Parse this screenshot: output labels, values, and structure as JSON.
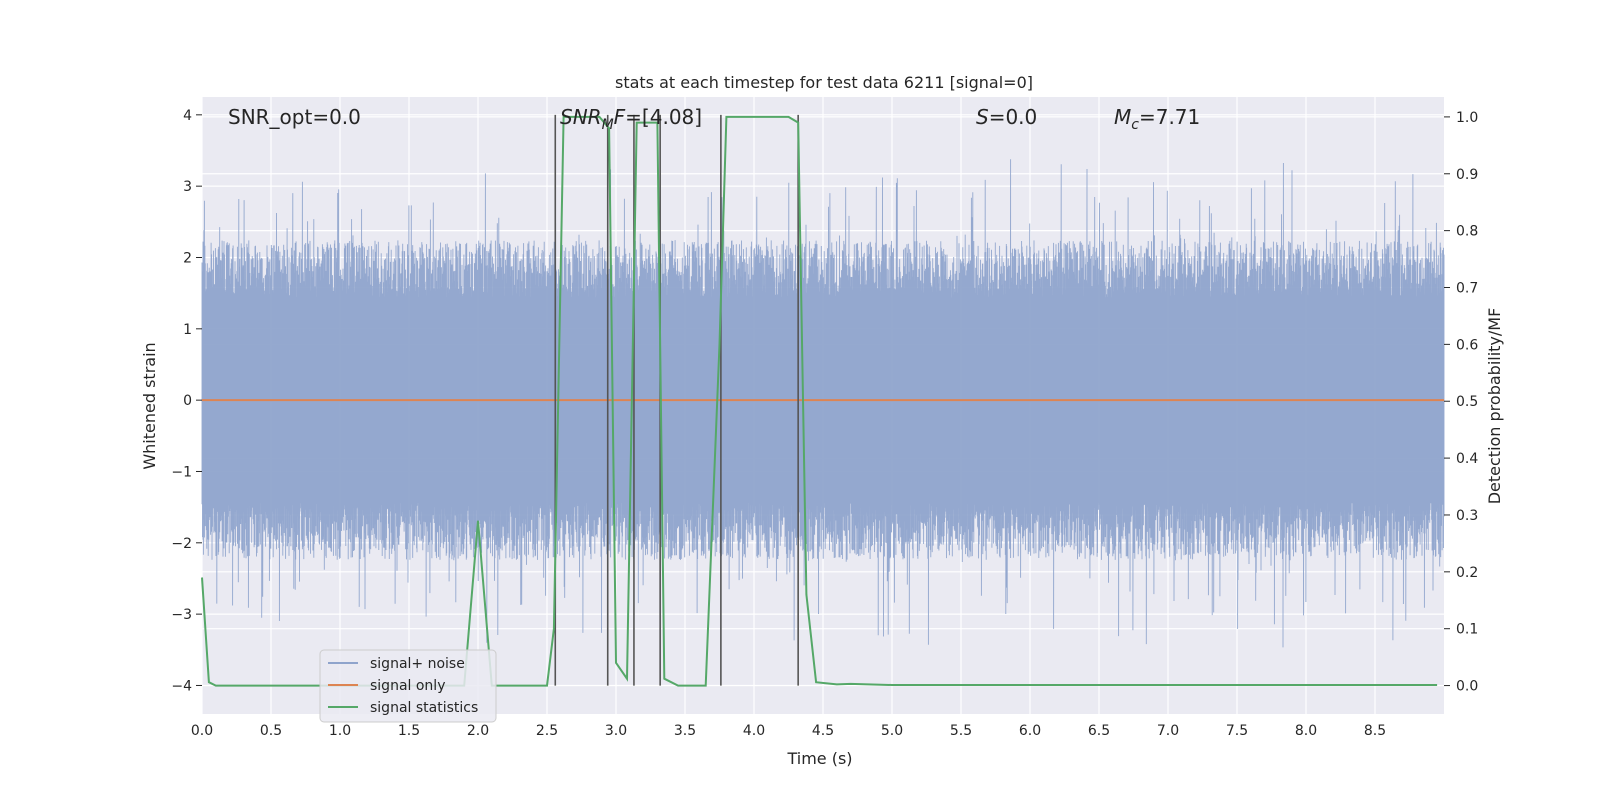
{
  "chart_data": {
    "type": "line",
    "title": "stats at each timestep for test data 6211 [signal=0]",
    "xlabel": "Time (s)",
    "ylabel": "Whitened strain",
    "y2label": "Detection probability/MF",
    "xlim": [
      0,
      9.0
    ],
    "ylim": [
      -4.4,
      4.25
    ],
    "y2lim": [
      -0.05,
      1.035
    ],
    "x_ticks": [
      "0.0",
      "0.5",
      "1.0",
      "1.5",
      "2.0",
      "2.5",
      "3.0",
      "3.5",
      "4.0",
      "4.5",
      "5.0",
      "5.5",
      "6.0",
      "6.5",
      "7.0",
      "7.5",
      "8.0",
      "8.5"
    ],
    "y_ticks": [
      "4",
      "3",
      "2",
      "1",
      "0",
      "−1",
      "−2",
      "−3",
      "−4"
    ],
    "y2_ticks": [
      "1.0",
      "0.9",
      "0.8",
      "0.7",
      "0.6",
      "0.5",
      "0.4",
      "0.3",
      "0.2",
      "0.1",
      "0.0"
    ],
    "grid": true,
    "legend_position": "lower-left",
    "annotations": {
      "snr_opt": "SNR_opt=0.0",
      "snr_mf_main": "SNR",
      "snr_mf_sub": "M",
      "snr_mf_rest": "F=[4.08]",
      "s_label": "S",
      "s_rest": "=0.0",
      "mc_main": "M",
      "mc_sub": "c",
      "mc_rest": "=7.71"
    },
    "series": [
      {
        "name": "signal+ noise",
        "color": "#8fa4cc",
        "envelope": {
          "description_free": true,
          "typical_amplitude": 1.6,
          "peak_max": 3.45,
          "peak_min": -3.55
        }
      },
      {
        "name": "signal only",
        "color": "#dd8452",
        "x": [
          0,
          9.0
        ],
        "y": [
          0,
          0
        ]
      },
      {
        "name": "signal statistics",
        "color": "#55a868",
        "axis": "y2",
        "x": [
          0.0,
          0.05,
          0.1,
          0.5,
          1.0,
          1.5,
          1.9,
          2.0,
          2.1,
          2.5,
          2.55,
          2.62,
          2.75,
          2.88,
          2.95,
          3.0,
          3.08,
          3.15,
          3.2,
          3.3,
          3.35,
          3.45,
          3.65,
          3.75,
          3.8,
          4.25,
          4.32,
          4.38,
          4.45,
          4.6,
          4.7,
          5.0,
          6.0,
          7.0,
          8.0,
          8.95
        ],
        "y": [
          0.19,
          0.006,
          0.0,
          0.0,
          0.0,
          0.0,
          0.0,
          0.29,
          0.0,
          0.0,
          0.1,
          1.0,
          1.0,
          1.0,
          0.98,
          0.04,
          0.012,
          0.99,
          0.99,
          0.99,
          0.012,
          0.0,
          0.0,
          0.6,
          1.0,
          1.0,
          0.99,
          0.16,
          0.006,
          0.002,
          0.003,
          0.001,
          0.001,
          0.001,
          0.001,
          0.001
        ]
      }
    ],
    "vertical_markers": {
      "color": "#555555",
      "x": [
        2.56,
        2.94,
        3.13,
        3.32,
        3.76,
        4.32
      ]
    }
  }
}
